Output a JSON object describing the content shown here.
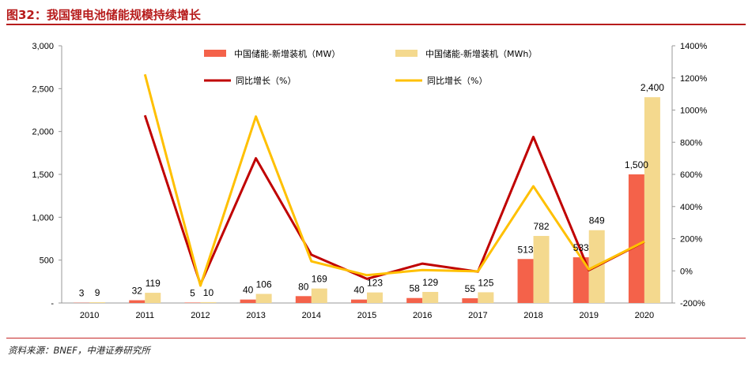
{
  "header": {
    "title": "图32：我国锂电池储能规模持续增长"
  },
  "footer": {
    "source": "资料来源：BNEF，中港证券研究所"
  },
  "chart_data": {
    "type": "bar",
    "categories": [
      "2010",
      "2011",
      "2012",
      "2013",
      "2014",
      "2015",
      "2016",
      "2017",
      "2018",
      "2019",
      "2020"
    ],
    "series": [
      {
        "name": "中国储能-新增装机（MW）",
        "kind": "bar",
        "axis": "left",
        "color": "#f4624a",
        "values": [
          3,
          32,
          5,
          40,
          80,
          40,
          58,
          55,
          513,
          533,
          1500
        ],
        "labels": [
          "3",
          "32",
          "5",
          "40",
          "80",
          "40",
          "58",
          "55",
          "513",
          "533",
          "1,500"
        ]
      },
      {
        "name": "中国储能-新增装机（MWh）",
        "kind": "bar",
        "axis": "left",
        "color": "#f4d98e",
        "values": [
          9,
          119,
          10,
          106,
          169,
          123,
          129,
          125,
          782,
          849,
          2400
        ],
        "labels": [
          "9",
          "119",
          "10",
          "106",
          "169",
          "123",
          "129",
          "125",
          "782",
          "849",
          "2,400"
        ]
      },
      {
        "name": "同比增长（%）",
        "kind": "line",
        "axis": "right",
        "color": "#c00000",
        "values": [
          null,
          967,
          -84,
          700,
          100,
          -50,
          45,
          -5,
          833,
          4,
          181
        ]
      },
      {
        "name": "同比增长（%）",
        "kind": "line",
        "axis": "right",
        "color": "#ffc000",
        "values": [
          null,
          1222,
          -92,
          960,
          59,
          -27,
          5,
          -3,
          526,
          9,
          183
        ]
      }
    ],
    "y_left": {
      "ylim": [
        0,
        3000
      ],
      "ticks": [
        0,
        500,
        1000,
        1500,
        2000,
        2500,
        3000
      ],
      "tick_labels": [
        "-",
        "500",
        "1,000",
        "1,500",
        "2,000",
        "2,500",
        "3,000"
      ]
    },
    "y_right": {
      "ylim": [
        -200,
        1400
      ],
      "ticks": [
        -200,
        0,
        200,
        400,
        600,
        800,
        1000,
        1200,
        1400
      ],
      "tick_labels": [
        "-200%",
        "0%",
        "200%",
        "400%",
        "600%",
        "800%",
        "1000%",
        "1200%",
        "1400%"
      ]
    },
    "xlabel": "",
    "ylabel": "",
    "grid": false,
    "legend": "top"
  }
}
